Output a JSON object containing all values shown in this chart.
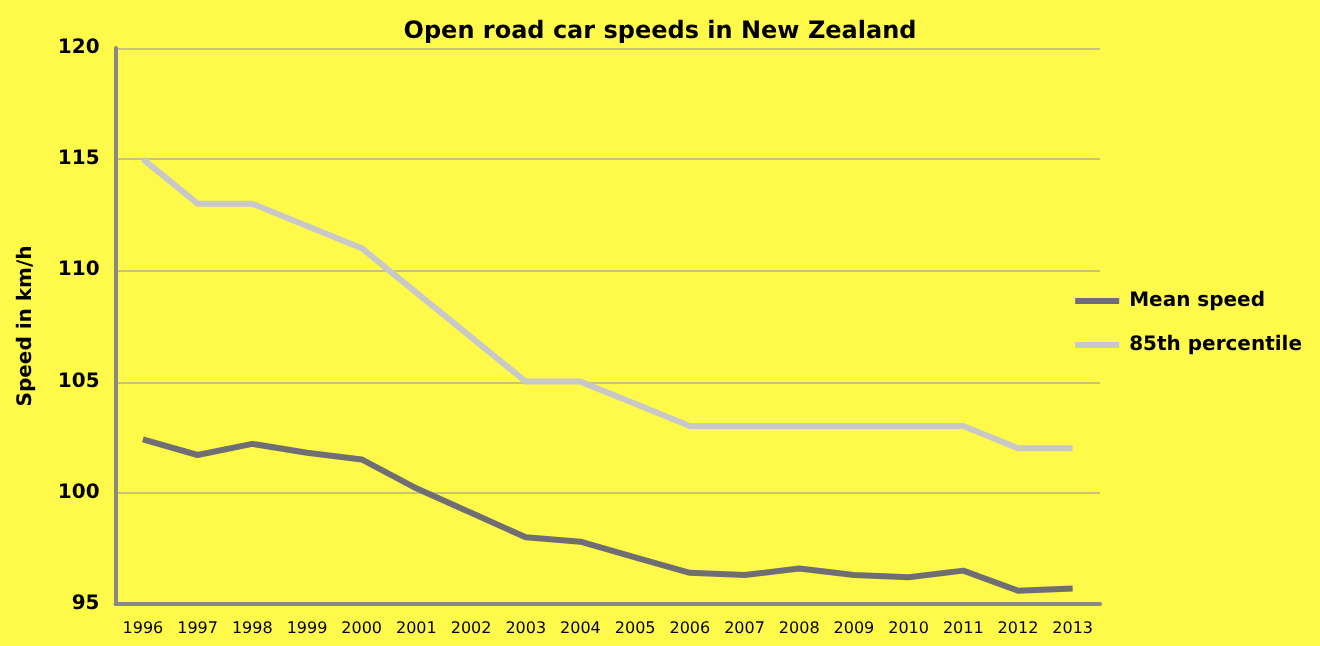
{
  "chart_data": {
    "type": "line",
    "title": "Open road car speeds in New Zealand",
    "ylabel": "Speed in km/h",
    "categories": [
      "1996",
      "1997",
      "1998",
      "1999",
      "2000",
      "2001",
      "2002",
      "2003",
      "2004",
      "2005",
      "2006",
      "2007",
      "2008",
      "2009",
      "2010",
      "2011",
      "2012",
      "2013"
    ],
    "series": [
      {
        "name": "Mean speed",
        "color": "#6e6e73",
        "values": [
          102.4,
          101.7,
          102.2,
          101.8,
          101.5,
          100.2,
          99.1,
          98.0,
          97.8,
          97.1,
          96.4,
          96.3,
          96.6,
          96.3,
          96.2,
          96.5,
          95.6,
          95.7
        ]
      },
      {
        "name": "85th percentile",
        "color": "#c8c8c8",
        "values": [
          115,
          113,
          113,
          112,
          111,
          109,
          107,
          105,
          105,
          104,
          103,
          103,
          103,
          103,
          103,
          103,
          102,
          102
        ]
      }
    ],
    "ylim": [
      95,
      120
    ],
    "yticks": [
      95,
      100,
      105,
      110,
      115,
      120
    ],
    "grid": "y",
    "legend": "right",
    "marker": "none",
    "line_style": "solid"
  }
}
